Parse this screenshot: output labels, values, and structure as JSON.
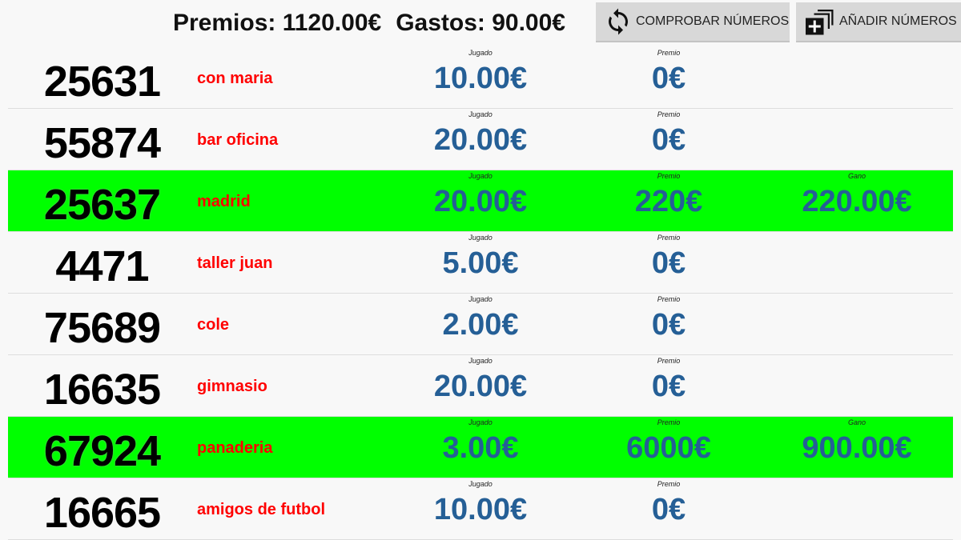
{
  "header": {
    "premios": "Premios: 1120.00€",
    "gastos": "Gastos: 90.00€",
    "check_button": "COMPROBAR NÚMEROS",
    "add_button": "AÑADIR NÚMEROS",
    "check_icon": "refresh-icon",
    "add_icon": "library-add-icon"
  },
  "labels": {
    "jugado": "Jugado",
    "premio": "Premio",
    "gano": "Gano"
  },
  "colors": {
    "win_row": "#00ff00",
    "name": "#ff0000",
    "amount": "#255f96"
  },
  "rows": [
    {
      "number": "25631",
      "name": "con maria",
      "jugado": "10.00€",
      "premio": "0€",
      "win": false
    },
    {
      "number": "55874",
      "name": "bar oficina",
      "jugado": "20.00€",
      "premio": "0€",
      "win": false
    },
    {
      "number": "25637",
      "name": "madrid",
      "jugado": "20.00€",
      "premio": "220€",
      "gano": "220.00€",
      "win": true
    },
    {
      "number": "4471",
      "name": "taller juan",
      "jugado": "5.00€",
      "premio": "0€",
      "win": false
    },
    {
      "number": "75689",
      "name": "cole",
      "jugado": "2.00€",
      "premio": "0€",
      "win": false
    },
    {
      "number": "16635",
      "name": "gimnasio",
      "jugado": "20.00€",
      "premio": "0€",
      "win": false
    },
    {
      "number": "67924",
      "name": "panaderia",
      "jugado": "3.00€",
      "premio": "6000€",
      "gano": "900.00€",
      "win": true
    },
    {
      "number": "16665",
      "name": "amigos de futbol",
      "jugado": "10.00€",
      "premio": "0€",
      "win": false
    }
  ]
}
